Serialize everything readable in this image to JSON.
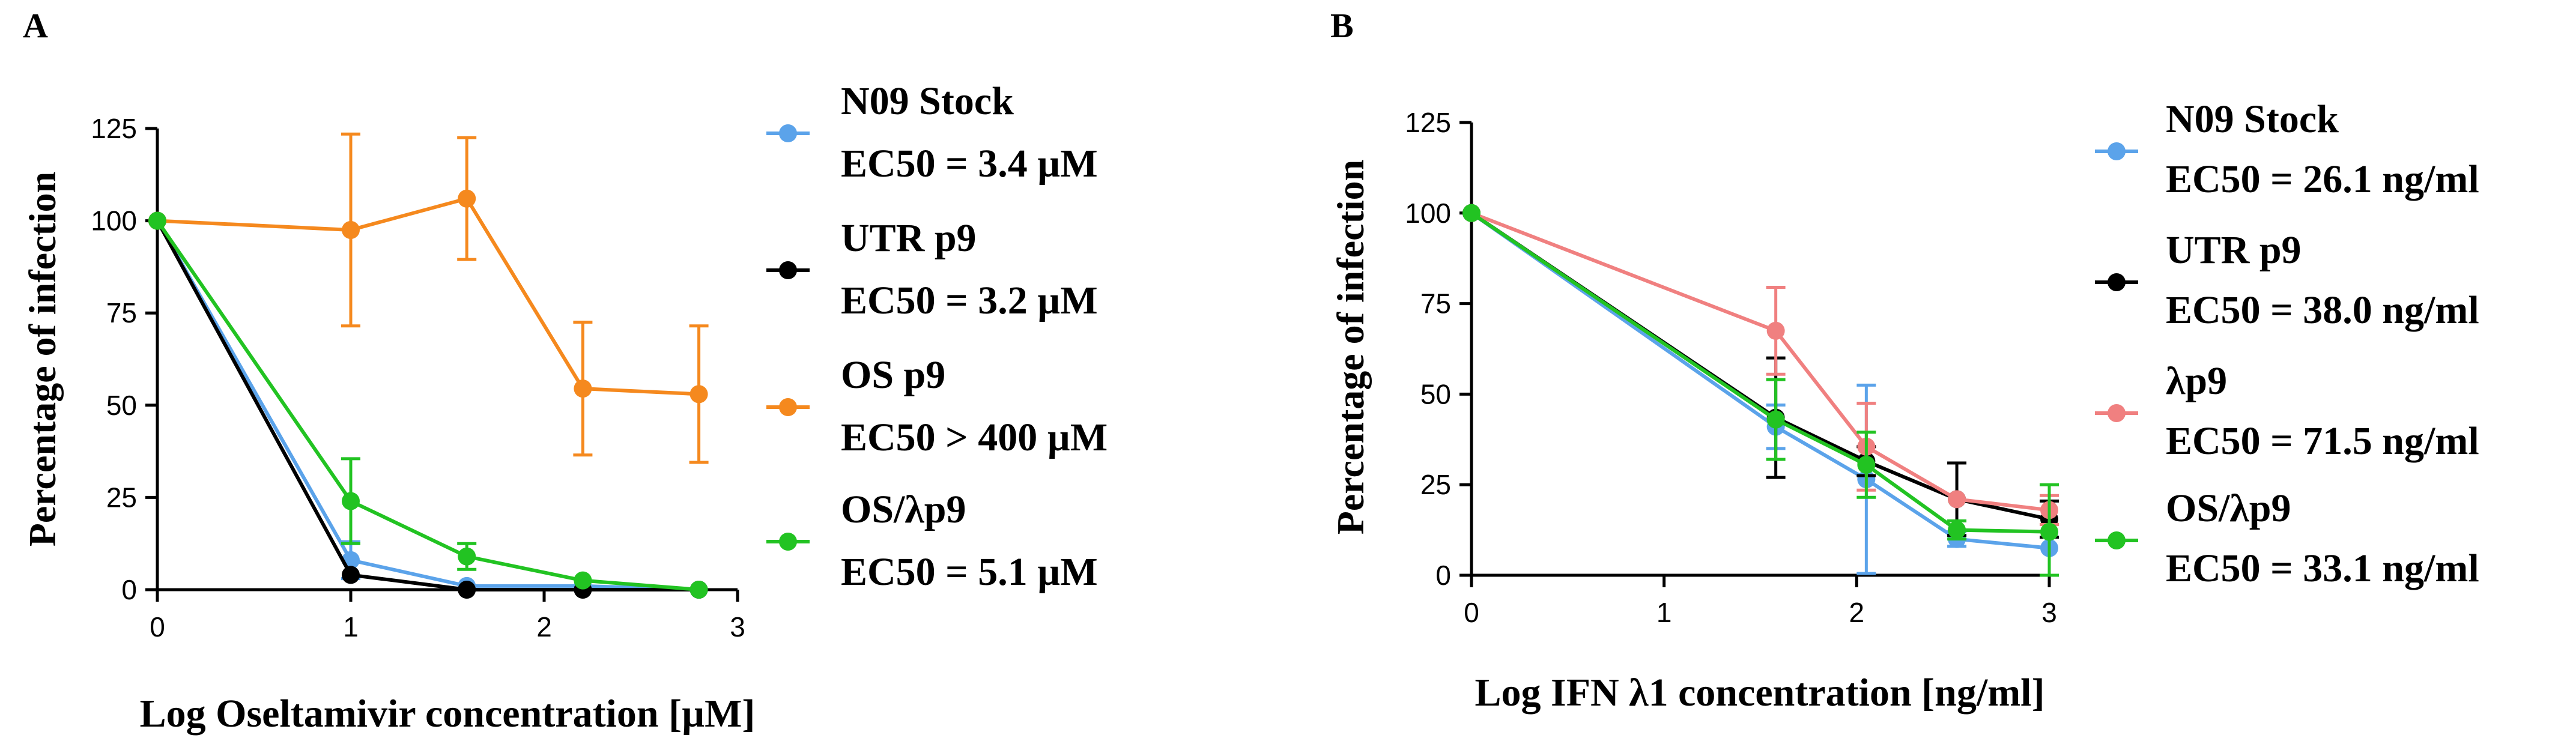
{
  "chart_data": [
    {
      "type": "line",
      "panel_label": "A",
      "xlabel": "Log Oseltamivir concentration [µM]",
      "ylabel": "Percentage of infection",
      "xlim": [
        0,
        3
      ],
      "ylim": [
        0,
        125
      ],
      "xticks": [
        "0",
        "1",
        "2",
        "3"
      ],
      "yticks": [
        "0",
        "25",
        "50",
        "75",
        "100",
        "125"
      ],
      "series": [
        {
          "name": "N09 Stock",
          "annotation": "EC50 = 3.4 µM",
          "color": "#5ba3ea",
          "x": [
            0,
            1,
            1.6,
            2.2,
            2.8
          ],
          "y": [
            100,
            8,
            1,
            1,
            0
          ],
          "err": [
            0,
            5,
            0,
            0,
            0
          ]
        },
        {
          "name": "UTR p9",
          "annotation": "EC50 = 3.2 µM",
          "color": "#000000",
          "x": [
            0,
            1,
            1.6,
            2.2,
            2.8
          ],
          "y": [
            100,
            4,
            0,
            0,
            0
          ],
          "err": [
            0,
            0,
            0,
            0,
            0
          ]
        },
        {
          "name": "OS p9",
          "annotation": "EC50 > 400 µM",
          "color": "#f5891e",
          "x": [
            0,
            1,
            1.6,
            2.2,
            2.8
          ],
          "y": [
            100,
            97.5,
            106,
            54.5,
            53
          ],
          "err": [
            0,
            26,
            16.5,
            18,
            18.5
          ]
        },
        {
          "name": "OS/λp9",
          "annotation": "EC50 = 5.1 µM",
          "color": "#22c322",
          "x": [
            0,
            1,
            1.6,
            2.2,
            2.8
          ],
          "y": [
            100,
            24,
            9,
            2.5,
            0
          ],
          "err": [
            0,
            11.5,
            3.5,
            0,
            0
          ]
        }
      ]
    },
    {
      "type": "line",
      "panel_label": "B",
      "xlabel": "Log IFN λ1 concentration [ng/ml]",
      "ylabel": "Percentage of infection",
      "xlim": [
        0,
        3
      ],
      "ylim": [
        0,
        125
      ],
      "xticks": [
        "0",
        "1",
        "2",
        "3"
      ],
      "yticks": [
        "0",
        "25",
        "50",
        "75",
        "100",
        "125"
      ],
      "series": [
        {
          "name": "N09 Stock",
          "annotation": "EC50 = 26.1 ng/ml",
          "color": "#5ba3ea",
          "x": [
            0,
            1.58,
            2.05,
            2.52,
            3
          ],
          "y": [
            100,
            41,
            26.5,
            10,
            7.5
          ],
          "err": [
            0,
            6,
            26,
            2,
            0
          ]
        },
        {
          "name": "UTR p9",
          "annotation": "EC50 = 38.0 ng/ml",
          "color": "#000000",
          "x": [
            0,
            1.58,
            2.05,
            2.52,
            3
          ],
          "y": [
            100,
            43.5,
            31.5,
            21,
            15.5
          ],
          "err": [
            0,
            16.5,
            4,
            10,
            5
          ]
        },
        {
          "name": "λp9",
          "annotation": "EC50 = 71.5 ng/ml",
          "color": "#f08080",
          "x": [
            0,
            1.58,
            2.05,
            2.52,
            3
          ],
          "y": [
            100,
            67.5,
            35.5,
            21,
            18
          ],
          "err": [
            0,
            12,
            12,
            0,
            4
          ]
        },
        {
          "name": "OS/λp9",
          "annotation": "EC50 = 33.1 ng/ml",
          "color": "#22c322",
          "x": [
            0,
            1.58,
            2.05,
            2.52,
            3
          ],
          "y": [
            100,
            43,
            30.5,
            12.5,
            12
          ],
          "err": [
            0,
            11,
            9,
            2.5,
            13
          ]
        }
      ]
    }
  ]
}
